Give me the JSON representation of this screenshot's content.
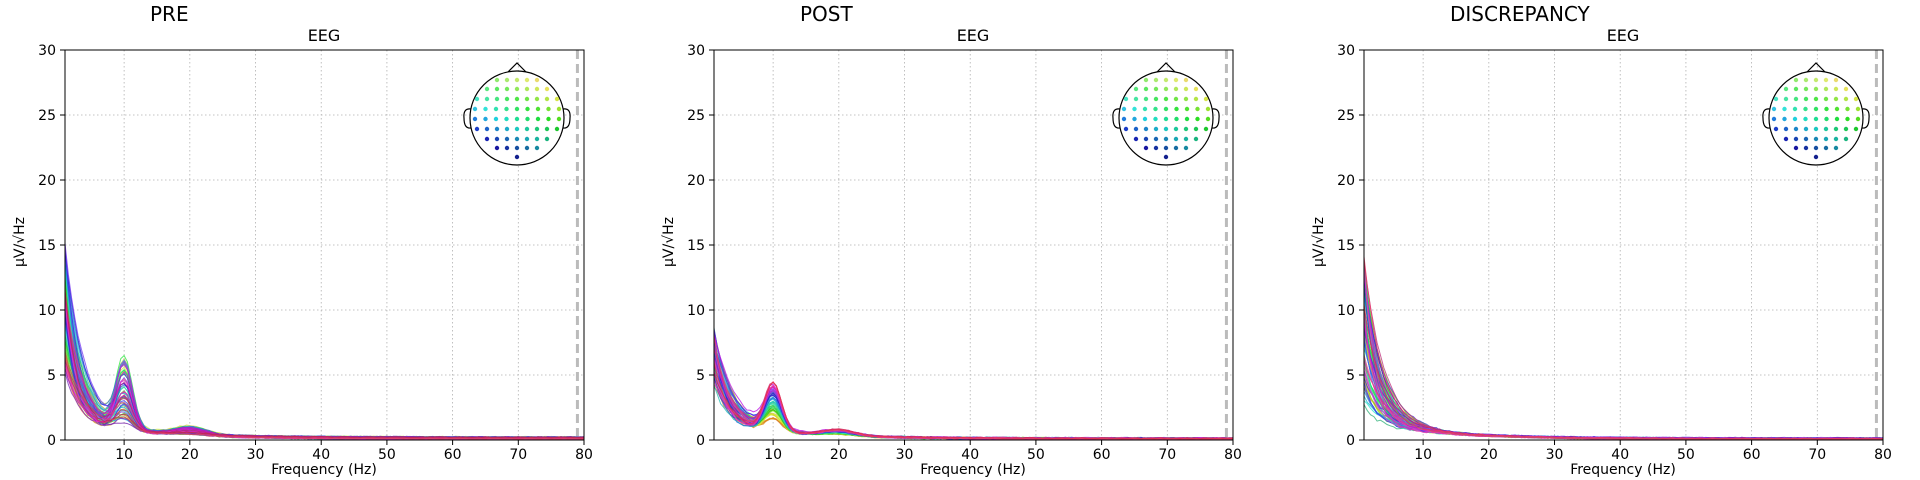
{
  "colors": {
    "grid": "#b0b0b0",
    "vline": "#bbbbbb",
    "axis": "#000000"
  },
  "chart_data": [
    {
      "type": "line",
      "panel_title": "PRE",
      "title": "EEG",
      "xlabel": "Frequency (Hz)",
      "ylabel": "µV/√Hz",
      "xlim": [
        1,
        80
      ],
      "ylim": [
        0,
        30
      ],
      "xticks": [
        10,
        20,
        30,
        40,
        50,
        60,
        70,
        80
      ],
      "yticks": [
        0,
        5,
        10,
        15,
        20,
        25,
        30
      ],
      "grid": true,
      "vline_x": 79,
      "inset": "sensor-topomap-top-right",
      "series_profile": {
        "channels": 60,
        "start_range": [
          4.0,
          14.0
        ],
        "alpha_peak_hz": 10,
        "alpha_peak_range": [
          0.5,
          5.5
        ],
        "tail_at_80hz": 0.15
      }
    },
    {
      "type": "line",
      "panel_title": "POST",
      "title": "EEG",
      "xlabel": "Frequency (Hz)",
      "ylabel": "µV/√Hz",
      "xlim": [
        1,
        80
      ],
      "ylim": [
        0,
        30
      ],
      "xticks": [
        10,
        20,
        30,
        40,
        50,
        60,
        70,
        80
      ],
      "yticks": [
        0,
        5,
        10,
        15,
        20,
        25,
        30
      ],
      "grid": true,
      "vline_x": 79,
      "inset": "sensor-topomap-top-right",
      "series_profile": {
        "channels": 60,
        "start_range": [
          3.0,
          7.5
        ],
        "alpha_peak_hz": 10,
        "alpha_peak_range": [
          0.3,
          5.3
        ],
        "tail_at_80hz": 0.1
      }
    },
    {
      "type": "line",
      "panel_title": "DISCREPANCY",
      "title": "EEG",
      "xlabel": "Frequency (Hz)",
      "ylabel": "µV/√Hz",
      "xlim": [
        1,
        80
      ],
      "ylim": [
        0,
        30
      ],
      "xticks": [
        10,
        20,
        30,
        40,
        50,
        60,
        70,
        80
      ],
      "yticks": [
        0,
        5,
        10,
        15,
        20,
        25,
        30
      ],
      "grid": true,
      "vline_x": 79,
      "inset": "sensor-topomap-top-right",
      "series_profile": {
        "channels": 60,
        "start_range": [
          1.5,
          13.0
        ],
        "alpha_peak_hz": 10,
        "alpha_peak_range": [
          0.0,
          0.0
        ],
        "tail_at_80hz": 0.1
      }
    }
  ]
}
